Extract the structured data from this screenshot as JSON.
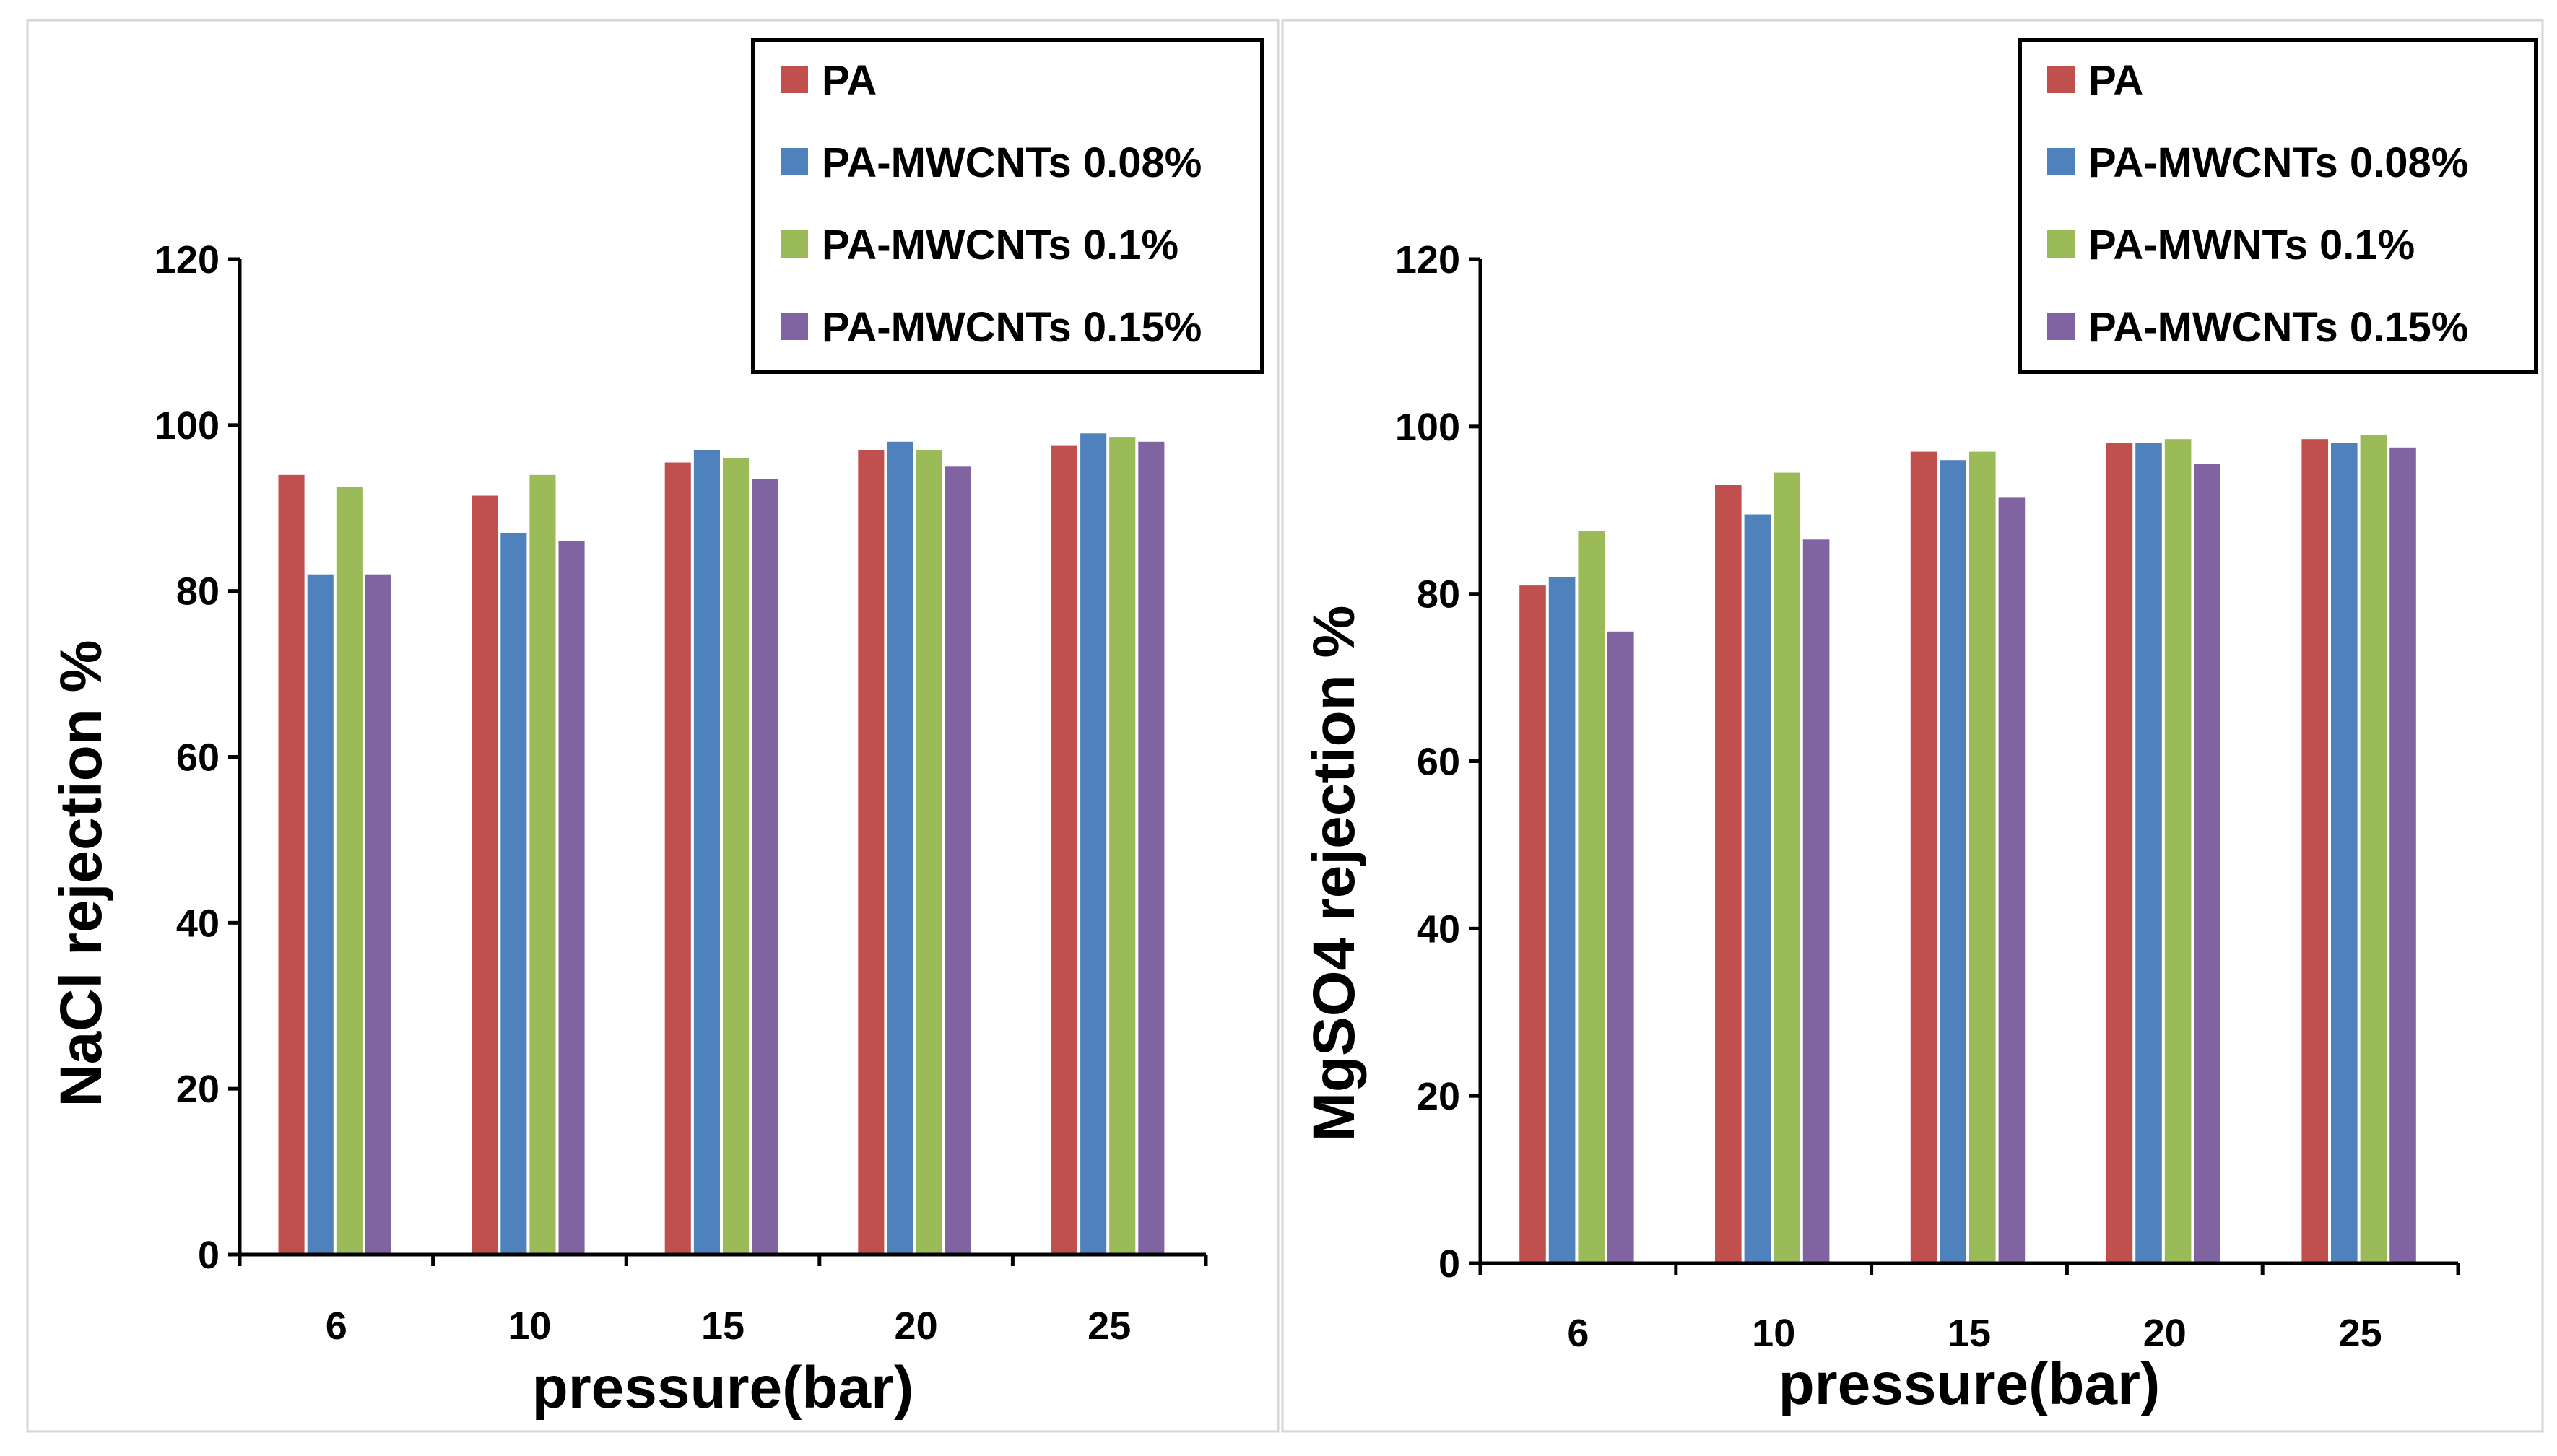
{
  "colors": {
    "series": [
      "#c0504d",
      "#4f81bd",
      "#9bbb59",
      "#8064a2"
    ],
    "axis": "#000000",
    "frame": "#d6d6d6",
    "background": "#ffffff"
  },
  "chart_data": [
    {
      "type": "bar",
      "title": "",
      "xlabel": "pressure(bar)",
      "ylabel": "NaCl rejection %",
      "categories": [
        "6",
        "10",
        "15",
        "20",
        "25"
      ],
      "ylim": [
        0,
        120
      ],
      "yticks": [
        0,
        20,
        40,
        60,
        80,
        100,
        120
      ],
      "grid": false,
      "legend_position": "top-right",
      "series": [
        {
          "name": "PA",
          "values": [
            94,
            91.5,
            95.5,
            97,
            97.5
          ]
        },
        {
          "name": "PA-MWCNTs 0.08%",
          "values": [
            82,
            87,
            97,
            98,
            99
          ]
        },
        {
          "name": "PA-MWCNTs 0.1%",
          "values": [
            92.5,
            94,
            96,
            97,
            98.5
          ]
        },
        {
          "name": "PA-MWCNTs 0.15%",
          "values": [
            82,
            86,
            93.5,
            95,
            98
          ]
        }
      ]
    },
    {
      "type": "bar",
      "title": "",
      "xlabel": "pressure(bar)",
      "ylabel": "MgSO4 rejection %",
      "categories": [
        "6",
        "10",
        "15",
        "20",
        "25"
      ],
      "ylim": [
        0,
        120
      ],
      "yticks": [
        0,
        20,
        40,
        60,
        80,
        100,
        120
      ],
      "grid": false,
      "legend_position": "top-right",
      "series": [
        {
          "name": "PA",
          "values": [
            81,
            93,
            97,
            98,
            98.5
          ]
        },
        {
          "name": "PA-MWCNTs 0.08%",
          "values": [
            82,
            89.5,
            96,
            98,
            98
          ]
        },
        {
          "name": "PA-MWNTs 0.1%",
          "values": [
            87.5,
            94.5,
            97,
            98.5,
            99
          ]
        },
        {
          "name": "PA-MWCNTs 0.15%",
          "values": [
            75.5,
            86.5,
            91.5,
            95.5,
            97.5
          ]
        }
      ]
    }
  ]
}
